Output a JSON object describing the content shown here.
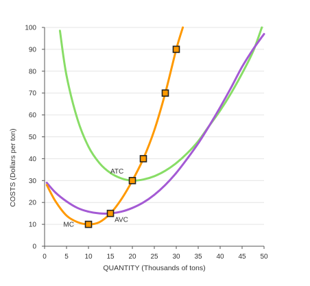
{
  "chart_data": {
    "type": "line",
    "xlabel": "QUANTITY (Thousands of tons)",
    "ylabel": "COSTS (Dollars per ton)",
    "xlim": [
      0,
      50
    ],
    "ylim": [
      0,
      100
    ],
    "xticks": [
      0,
      5,
      10,
      15,
      20,
      25,
      30,
      35,
      40,
      45,
      50
    ],
    "yticks": [
      0,
      10,
      20,
      30,
      40,
      50,
      60,
      70,
      80,
      90,
      100
    ],
    "grid": true,
    "legend": "none",
    "series": [
      {
        "name": "ATC",
        "color": "#88dd66",
        "x": [
          3.5,
          5,
          7.5,
          10,
          12.5,
          15,
          17.5,
          20,
          22.5,
          25,
          27.5,
          30,
          32.5,
          35,
          37.5,
          40,
          42.5,
          45,
          47.5,
          49.5
        ],
        "values": [
          98.5,
          78,
          58,
          45.5,
          38,
          33.5,
          31,
          30,
          30.5,
          32,
          34.5,
          38,
          42.5,
          48,
          55,
          62,
          70,
          79,
          89,
          100
        ]
      },
      {
        "name": "AVC",
        "color": "#a45ad4",
        "x": [
          0.5,
          2.5,
          5,
          7.5,
          10,
          12.5,
          15,
          17.5,
          20,
          22.5,
          25,
          27.5,
          30,
          32.5,
          35,
          37.5,
          40,
          42.5,
          45,
          47.5,
          50
        ],
        "values": [
          29,
          24.5,
          20.5,
          17.5,
          15.8,
          15,
          15,
          15.8,
          17.5,
          20,
          23.5,
          28,
          33.5,
          40,
          47,
          55,
          63.5,
          72.5,
          82,
          90,
          97
        ]
      },
      {
        "name": "MC",
        "color": "#ff9900",
        "x": [
          0.5,
          2.5,
          5,
          7.5,
          10,
          12.5,
          15,
          17.5,
          20,
          22.5,
          25,
          27.5,
          30,
          31.5
        ],
        "values": [
          28,
          20.5,
          14,
          11,
          10,
          11,
          15,
          21.5,
          30,
          40,
          53,
          70,
          90,
          100
        ]
      }
    ],
    "markers": [
      {
        "x": 10,
        "y": 10
      },
      {
        "x": 15,
        "y": 15
      },
      {
        "x": 20,
        "y": 30
      },
      {
        "x": 22.5,
        "y": 40
      },
      {
        "x": 27.5,
        "y": 70
      },
      {
        "x": 30,
        "y": 90
      }
    ],
    "curve_labels": [
      {
        "text": "ATC",
        "x": 16.5,
        "y": 33.2
      },
      {
        "text": "AVC",
        "x": 17.5,
        "y": 11.2
      },
      {
        "text": "MC",
        "x": 5.5,
        "y": 9.0
      }
    ],
    "colors": {
      "grid": "#e4e4e4",
      "axis": "#555555",
      "marker_fill": "#ff9900",
      "marker_stroke": "#222222"
    }
  }
}
